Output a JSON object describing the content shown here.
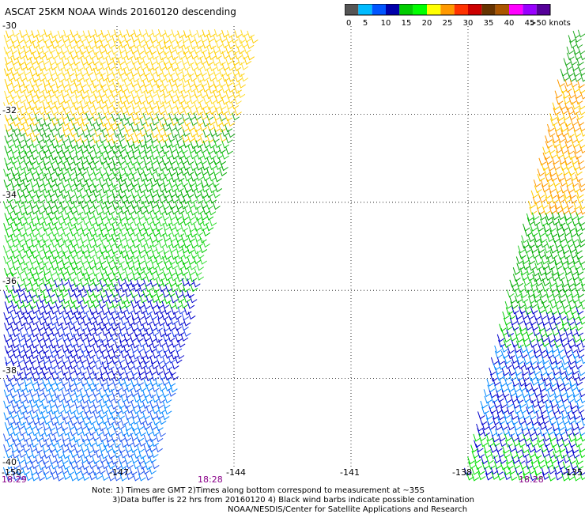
{
  "title": "ASCAT 25KM NOAA Winds 20160120 descending",
  "legend": {
    "labels": [
      "0",
      "5",
      "10",
      "15",
      "20",
      "25",
      "30",
      "35",
      "40",
      "45",
      ">50 knots"
    ],
    "colors": [
      "#555555",
      "#00bbff",
      "#0055ff",
      "#0000aa",
      "#00cc00",
      "#00ff00",
      "#ffff00",
      "#ff9900",
      "#ff3300",
      "#cc0000",
      "#663300",
      "#aa5500",
      "#ff00ff",
      "#9900ff",
      "#550099"
    ]
  },
  "map": {
    "lat_labels": [
      "-30",
      "-32",
      "-34",
      "-36",
      "-38",
      "-40"
    ],
    "lon_labels": [
      "-150",
      "-147",
      "-144",
      "-141",
      "-138",
      "-135"
    ],
    "times": [
      "18:29",
      "18:28",
      "18:28"
    ],
    "lat_range": [
      -40,
      -30
    ],
    "lon_range": [
      -150,
      -135
    ],
    "grid": true,
    "swaths": [
      {
        "region": "western swath",
        "winds": "yellow-orange (20-30 knots) in north, green (15-20 knots) in middle, blue (5-15 knots) in south"
      },
      {
        "region": "eastern swath",
        "winds": "orange-yellow (25-30 knots) in north, green (15-20 knots) in middle, blue (5-15 knots) south with green at southern edge"
      }
    ]
  },
  "notes": {
    "line1": "Note: 1) Times are GMT 2)Times along bottom correspond to measurement at ~35S",
    "line2": "3)Data buffer is 22 hrs from 20160120 4) Black wind barbs indicate possible contamination",
    "line3": "NOAA/NESDIS/Center for Satellite Applications and Research"
  }
}
